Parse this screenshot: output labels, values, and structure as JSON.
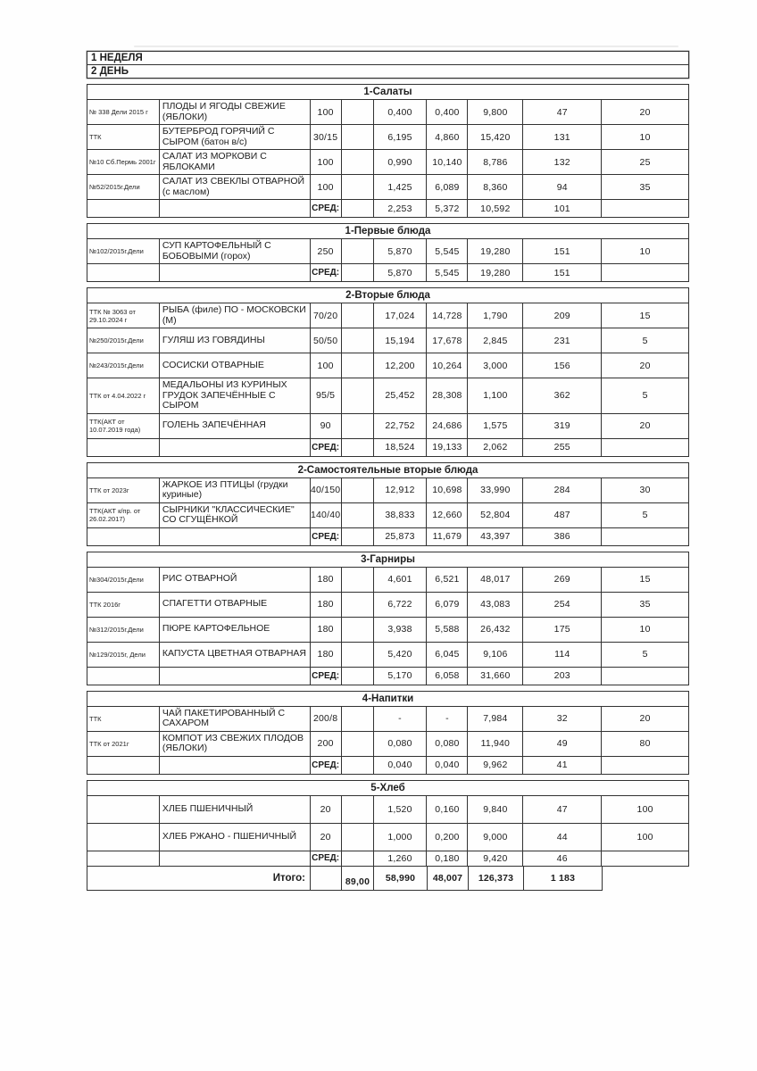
{
  "header": {
    "week": "1 НЕДЕЛЯ",
    "day": "2 ДЕНЬ"
  },
  "avg_label": "СРЕД:",
  "sections": [
    {
      "title": "1-Салаты",
      "rows": [
        {
          "ref": "№ 338 Дели 2015 г",
          "dish": "ПЛОДЫ И ЯГОДЫ СВЕЖИЕ (ЯБЛОКИ)",
          "portion": "100",
          "v1": "0,400",
          "v2": "0,400",
          "v3": "9,800",
          "v4": "47",
          "v5": "20"
        },
        {
          "ref": "ТТК",
          "dish": "БУТЕРБРОД ГОРЯЧИЙ С СЫРОМ (батон в/с)",
          "portion": "30/15",
          "v1": "6,195",
          "v2": "4,860",
          "v3": "15,420",
          "v4": "131",
          "v5": "10"
        },
        {
          "ref": "№10 Сб.Пермь 2001г",
          "dish": "САЛАТ ИЗ МОРКОВИ С ЯБЛОКАМИ",
          "portion": "100",
          "v1": "0,990",
          "v2": "10,140",
          "v3": "8,786",
          "v4": "132",
          "v5": "25"
        },
        {
          "ref": "№52/2015г.Дели",
          "dish": "САЛАТ ИЗ СВЕКЛЫ ОТВАРНОЙ (с маслом)",
          "portion": "100",
          "v1": "1,425",
          "v2": "6,089",
          "v3": "8,360",
          "v4": "94",
          "v5": "35"
        }
      ],
      "avg": {
        "v1": "2,253",
        "v2": "5,372",
        "v3": "10,592",
        "v4": "101"
      }
    },
    {
      "title": "1-Первые блюда",
      "rows": [
        {
          "ref": "№102/2015г.Дели",
          "dish": "СУП КАРТОФЕЛЬНЫЙ С БОБОВЫМИ (горох)",
          "portion": "250",
          "v1": "5,870",
          "v2": "5,545",
          "v3": "19,280",
          "v4": "151",
          "v5": "10"
        }
      ],
      "avg": {
        "v1": "5,870",
        "v2": "5,545",
        "v3": "19,280",
        "v4": "151"
      }
    },
    {
      "title": "2-Вторые блюда",
      "rows": [
        {
          "ref": "ТТК № 3063 от 29.10.2024 г",
          "dish": "РЫБА (филе) ПО - МОСКОВСКИ (М)",
          "portion": "70/20",
          "v1": "17,024",
          "v2": "14,728",
          "v3": "1,790",
          "v4": "209",
          "v5": "15"
        },
        {
          "ref": "№250/2015г.Дели",
          "dish": "ГУЛЯШ ИЗ ГОВЯДИНЫ",
          "portion": "50/50",
          "v1": "15,194",
          "v2": "17,678",
          "v3": "2,845",
          "v4": "231",
          "v5": "5"
        },
        {
          "ref": "№243/2015г.Дели",
          "dish": "СОСИСКИ ОТВАРНЫЕ",
          "portion": "100",
          "v1": "12,200",
          "v2": "10,264",
          "v3": "3,000",
          "v4": "156",
          "v5": "20"
        },
        {
          "ref": "ТТК от 4.04.2022 г",
          "dish": "МЕДАЛЬОНЫ ИЗ КУРИНЫХ ГРУДОК ЗАПЕЧЁННЫЕ С СЫРОМ",
          "portion": "95/5",
          "v1": "25,452",
          "v2": "28,308",
          "v3": "1,100",
          "v4": "362",
          "v5": "5"
        },
        {
          "ref": "ТТК(АКТ от 10.07.2019 года)",
          "dish": "ГОЛЕНЬ ЗАПЕЧЁННАЯ",
          "portion": "90",
          "v1": "22,752",
          "v2": "24,686",
          "v3": "1,575",
          "v4": "319",
          "v5": "20"
        }
      ],
      "avg": {
        "v1": "18,524",
        "v2": "19,133",
        "v3": "2,062",
        "v4": "255"
      }
    },
    {
      "title": "2-Самостоятельные вторые блюда",
      "rows": [
        {
          "ref": "ТТК от 2023г",
          "dish": "ЖАРКОЕ ИЗ ПТИЦЫ (грудки куриные)",
          "portion": "40/150",
          "v1": "12,912",
          "v2": "10,698",
          "v3": "33,990",
          "v4": "284",
          "v5": "30"
        },
        {
          "ref": "ТТК(АКТ к/пр. от 26.02.2017)",
          "dish": "СЫРНИКИ \"КЛАССИЧЕСКИЕ\" СО СГУЩЁНКОЙ",
          "portion": "140/40",
          "v1": "38,833",
          "v2": "12,660",
          "v3": "52,804",
          "v4": "487",
          "v5": "5"
        }
      ],
      "avg": {
        "v1": "25,873",
        "v2": "11,679",
        "v3": "43,397",
        "v4": "386"
      }
    },
    {
      "title": "3-Гарниры",
      "rows": [
        {
          "ref": "№304/2015г.Дели",
          "dish": "РИС ОТВАРНОЙ",
          "portion": "180",
          "v1": "4,601",
          "v2": "6,521",
          "v3": "48,017",
          "v4": "269",
          "v5": "15"
        },
        {
          "ref": "ТТК 2016г",
          "dish": "СПАГЕТТИ ОТВАРНЫЕ",
          "portion": "180",
          "v1": "6,722",
          "v2": "6,079",
          "v3": "43,083",
          "v4": "254",
          "v5": "35"
        },
        {
          "ref": "№312/2015г.Дели",
          "dish": "ПЮРЕ КАРТОФЕЛЬНОЕ",
          "portion": "180",
          "v1": "3,938",
          "v2": "5,588",
          "v3": "26,432",
          "v4": "175",
          "v5": "10"
        },
        {
          "ref": "№129/2015г, Дели",
          "dish": "КАПУСТА ЦВЕТНАЯ ОТВАРНАЯ",
          "portion": "180",
          "v1": "5,420",
          "v2": "6,045",
          "v3": "9,106",
          "v4": "114",
          "v5": "5"
        }
      ],
      "avg": {
        "v1": "5,170",
        "v2": "6,058",
        "v3": "31,660",
        "v4": "203"
      }
    },
    {
      "title": "4-Напитки",
      "rows": [
        {
          "ref": "ТТК",
          "dish": "ЧАЙ ПАКЕТИРОВАННЫЙ С САХАРОМ",
          "portion": "200/8",
          "v1": "-",
          "v2": "-",
          "v3": "7,984",
          "v4": "32",
          "v5": "20"
        },
        {
          "ref": "ТТК от 2021г",
          "dish": "КОМПОТ ИЗ СВЕЖИХ ПЛОДОВ (ЯБЛОКИ)",
          "portion": "200",
          "v1": "0,080",
          "v2": "0,080",
          "v3": "11,940",
          "v4": "49",
          "v5": "80"
        }
      ],
      "avg": {
        "v1": "0,040",
        "v2": "0,040",
        "v3": "9,962",
        "v4": "41"
      }
    },
    {
      "title": "5-Хлеб",
      "rows": [
        {
          "ref": "",
          "dish": "ХЛЕБ ПШЕНИЧНЫЙ",
          "portion": "20",
          "v1": "1,520",
          "v2": "0,160",
          "v3": "9,840",
          "v4": "47",
          "v5": "100"
        },
        {
          "ref": "",
          "dish": "ХЛЕБ РЖАНО - ПШЕНИЧНЫЙ",
          "portion": "20",
          "v1": "1,000",
          "v2": "0,200",
          "v3": "9,000",
          "v4": "44",
          "v5": "100"
        }
      ],
      "avg": {
        "v1": "1,260",
        "v2": "0,180",
        "v3": "9,420",
        "v4": "46"
      }
    }
  ],
  "total": {
    "label": "Итого:",
    "portions_sum": "89,00",
    "v1": "58,990",
    "v2": "48,007",
    "v3": "126,373",
    "v4": "1 183"
  }
}
